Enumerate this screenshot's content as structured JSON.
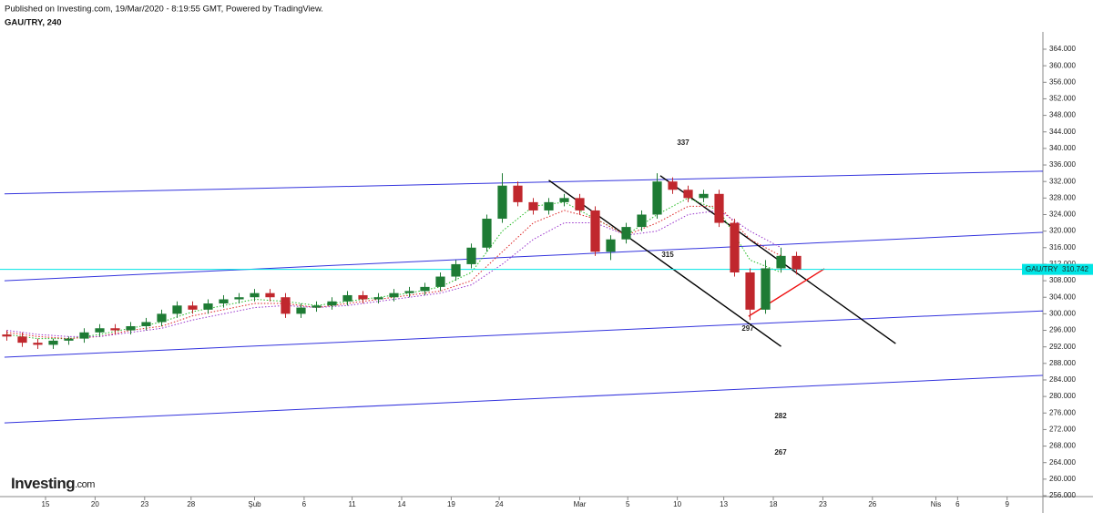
{
  "chart_data": {
    "type": "candlestick",
    "header": "Published on Investing.com, 19/Mar/2020 - 8:19:55 GMT, Powered by TradingView.",
    "title": "GAU/TRY, 240",
    "logo": {
      "main": "Investing",
      "suffix": ".com"
    },
    "x": [
      -2.5,
      -1.5,
      -0.5,
      0.5,
      1.5,
      2.5,
      3.5,
      4.5,
      5.5,
      6.5,
      7.5,
      8.5,
      9.5,
      10.5,
      11.5,
      12.5,
      13.5,
      14.5,
      15.5,
      16.5,
      17.5,
      18.5,
      19.5,
      20.5,
      21.5,
      22.5,
      23.5,
      24.5,
      25.5,
      26.5,
      27.5,
      28.5,
      29.5,
      30.5,
      31.5,
      32.5,
      33.5,
      34.5,
      35.5,
      36.5,
      37.5,
      38.5,
      39.5,
      40.5,
      41.5,
      42.5,
      43.5,
      44.5,
      45.5,
      46.5,
      47.5,
      48.5
    ],
    "open": [
      295,
      294.5,
      293,
      292.5,
      293.5,
      294,
      295.5,
      296.5,
      296,
      297,
      298,
      300,
      302,
      301,
      302.5,
      303.5,
      304,
      305,
      304,
      300,
      301.5,
      302,
      303,
      304.5,
      303.5,
      304,
      305,
      305.5,
      306.5,
      309,
      312,
      316,
      323,
      331,
      327,
      325,
      327,
      328,
      325,
      315,
      318,
      321,
      324,
      332,
      330,
      328,
      329,
      322,
      310,
      301,
      311,
      314
    ],
    "high": [
      296,
      295.5,
      294,
      294,
      294.5,
      296.5,
      297.5,
      297.5,
      298,
      299,
      301,
      303,
      303,
      303.5,
      304.5,
      305,
      306,
      306,
      305,
      302.5,
      303,
      304,
      305.5,
      305.5,
      305,
      306,
      306.5,
      307.5,
      310,
      313,
      317,
      324,
      334,
      332,
      328,
      328,
      329,
      329,
      326,
      319,
      322,
      325,
      334,
      333,
      331,
      330,
      330,
      323,
      311,
      313,
      316,
      315
    ],
    "low": [
      293.5,
      292,
      291.5,
      291.5,
      292.5,
      293,
      294.5,
      295,
      295,
      296,
      297,
      299,
      300,
      300,
      301.5,
      302.5,
      303,
      303,
      299,
      299,
      300.5,
      301,
      302,
      302.5,
      302.5,
      303,
      304,
      304.5,
      305.5,
      308,
      311,
      315,
      322,
      326,
      324,
      324,
      326,
      324,
      314,
      313,
      317,
      320,
      323,
      329,
      327,
      327,
      321,
      309,
      298.5,
      300,
      310,
      309.5
    ],
    "close": [
      294.5,
      293,
      292.5,
      293.5,
      294,
      295.5,
      296.5,
      296,
      297,
      298,
      300,
      302,
      301,
      302.5,
      303.5,
      304,
      305,
      304,
      300,
      301.5,
      302,
      303,
      304.5,
      303.5,
      304,
      305,
      305.5,
      306.5,
      309,
      312,
      316,
      323,
      331,
      327,
      325,
      327,
      328,
      325,
      315,
      318,
      321,
      324,
      332,
      330,
      328,
      329,
      322,
      310,
      301,
      311,
      314,
      310.742
    ],
    "up_color": "#1e7b34",
    "down_color": "#c0272d",
    "moving_averages": {
      "x": [
        -2.5,
        -0.5,
        1.5,
        3.5,
        5.5,
        7.5,
        9.5,
        11.5,
        13.5,
        15.5,
        17.5,
        19.5,
        21.5,
        23.5,
        25.5,
        27.5,
        29.5,
        31.5,
        33.5,
        35.5,
        37.5,
        39.5,
        41.5,
        43.5,
        45.5,
        47.5
      ],
      "series": [
        {
          "color": "#22bb22",
          "values": [
            295,
            294,
            294,
            295,
            296.5,
            298,
            300.5,
            302,
            303.5,
            303,
            302,
            303,
            304,
            305,
            306.5,
            310,
            320,
            326,
            327,
            323,
            319,
            324,
            328,
            325,
            313,
            310
          ]
        },
        {
          "color": "#dd2222",
          "values": [
            295.5,
            294.5,
            294,
            294.5,
            296,
            297,
            299.5,
            301,
            302.5,
            302.5,
            301.5,
            302.5,
            303.5,
            304.5,
            305.5,
            308,
            315,
            322,
            325,
            323,
            319,
            322,
            326,
            326,
            318,
            314
          ]
        },
        {
          "color": "#9933cc",
          "values": [
            296,
            295,
            294.5,
            294.5,
            295.5,
            296.5,
            298.5,
            300,
            301.5,
            302,
            301.5,
            302,
            303,
            304,
            305,
            307,
            312,
            318,
            322,
            322,
            319,
            320,
            324,
            325,
            320,
            316
          ]
        }
      ]
    },
    "trend_lines": [
      {
        "color": "#3333dd",
        "x": [
          -2.65,
          64.4
        ],
        "values": [
          329.0,
          334.5
        ]
      },
      {
        "color": "#3333dd",
        "x": [
          -2.65,
          64.4
        ],
        "values": [
          308.0,
          319.7
        ]
      },
      {
        "color": "#3333dd",
        "x": [
          -2.65,
          64.4
        ],
        "values": [
          289.5,
          300.7
        ]
      },
      {
        "color": "#3333dd",
        "x": [
          -2.65,
          64.4
        ],
        "values": [
          273.6,
          285.1
        ]
      },
      {
        "color": "#000000",
        "x": [
          32.5,
          47.5
        ],
        "values": [
          332.3,
          292.1
        ]
      },
      {
        "color": "#000000",
        "x": [
          39.7,
          54.9
        ],
        "values": [
          333.4,
          292.8
        ]
      },
      {
        "color": "#ee1111",
        "x": [
          45.4,
          50.3
        ],
        "values": [
          299.4,
          310.9
        ]
      }
    ],
    "price_line": {
      "name": "GAU/TRY",
      "value": 310.742,
      "color": "#00e5e5"
    },
    "annotations": [
      "337",
      "315",
      "297",
      "282",
      "267"
    ],
    "xlim": [
      -2.94,
      64.41
    ],
    "ylim": [
      255.78,
      368.19
    ],
    "xticks": [
      {
        "value": 0,
        "label": "15"
      },
      {
        "value": 3.2,
        "label": "20"
      },
      {
        "value": 6.4,
        "label": "23"
      },
      {
        "value": 9.4,
        "label": "28"
      },
      {
        "value": 13.5,
        "label": "Şub"
      },
      {
        "value": 16.7,
        "label": "6"
      },
      {
        "value": 19.8,
        "label": "11"
      },
      {
        "value": 23,
        "label": "14"
      },
      {
        "value": 26.2,
        "label": "19"
      },
      {
        "value": 29.3,
        "label": "24"
      },
      {
        "value": 34.5,
        "label": "Mar"
      },
      {
        "value": 37.6,
        "label": "5"
      },
      {
        "value": 40.8,
        "label": "10"
      },
      {
        "value": 43.8,
        "label": "13"
      },
      {
        "value": 47,
        "label": "18"
      },
      {
        "value": 50.2,
        "label": "23"
      },
      {
        "value": 53.4,
        "label": "26"
      },
      {
        "value": 57.5,
        "label": "Nis"
      },
      {
        "value": 58.9,
        "label": "6"
      },
      {
        "value": 62.1,
        "label": "9"
      }
    ],
    "yticks": [
      {
        "value": 256,
        "label": "256.000"
      },
      {
        "value": 260,
        "label": "260.000"
      },
      {
        "value": 264,
        "label": "264.000"
      },
      {
        "value": 268,
        "label": "268.000"
      },
      {
        "value": 272,
        "label": "272.000"
      },
      {
        "value": 276,
        "label": "276.000"
      },
      {
        "value": 280,
        "label": "280.000"
      },
      {
        "value": 284,
        "label": "284.000"
      },
      {
        "value": 288,
        "label": "288.000"
      },
      {
        "value": 292,
        "label": "292.000"
      },
      {
        "value": 296,
        "label": "296.000"
      },
      {
        "value": 300,
        "label": "300.000"
      },
      {
        "value": 304,
        "label": "304.000"
      },
      {
        "value": 308,
        "label": "308.000"
      },
      {
        "value": 312,
        "label": "312.000"
      },
      {
        "value": 316,
        "label": "316.000"
      },
      {
        "value": 320,
        "label": "320.000"
      },
      {
        "value": 324,
        "label": "324.000"
      },
      {
        "value": 328,
        "label": "328.000"
      },
      {
        "value": 332,
        "label": "332.000"
      },
      {
        "value": 336,
        "label": "336.000"
      },
      {
        "value": 340,
        "label": "340.000"
      },
      {
        "value": 344,
        "label": "344.000"
      },
      {
        "value": 348,
        "label": "348.000"
      },
      {
        "value": 352,
        "label": "352.000"
      },
      {
        "value": 356,
        "label": "356.000"
      },
      {
        "value": 360,
        "label": "360.000"
      },
      {
        "value": 364,
        "label": "364.000"
      }
    ],
    "grid": false
  }
}
